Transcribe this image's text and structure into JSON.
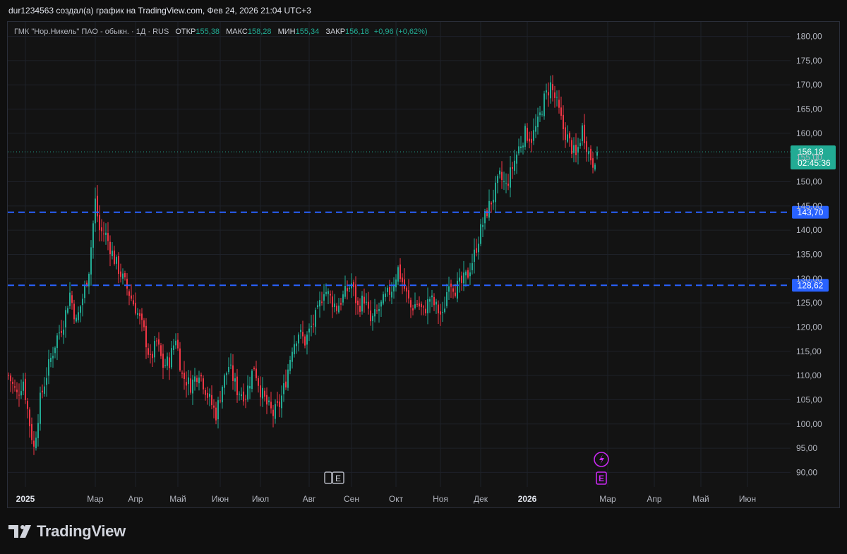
{
  "header": {
    "attribution": "dur1234563 создал(а) график на TradingView.com, Фев 24, 2026 21:04 UTC+3"
  },
  "legend": {
    "symbol": "ГМК \"Нор.Никель\" ПАО - обыкн. · 1Д · RUS",
    "open_label": "ОТКР",
    "open_value": "155,38",
    "high_label": "МАКС",
    "high_value": "158,28",
    "low_label": "МИН",
    "low_value": "155,34",
    "close_label": "ЗАКР",
    "close_value": "156,18",
    "change": "+0,96 (+0,62%)"
  },
  "footer": {
    "brand": "TradingView"
  },
  "events": {
    "earnings_letter": "E",
    "dividend_letter": "E"
  },
  "colors": {
    "up": "#22ab94",
    "down": "#f23645",
    "level": "#2962ff",
    "price_label": "#22ab94",
    "background": "#131313",
    "event": "#c829f0"
  },
  "chart_data": {
    "type": "candlestick",
    "y_axis": {
      "range": [
        87,
        183
      ],
      "ticks": [
        "90,00",
        "95,00",
        "100,00",
        "105,00",
        "110,00",
        "115,00",
        "120,00",
        "125,00",
        "130,00",
        "135,00",
        "140,00",
        "145,00",
        "150,00",
        "155,00",
        "160,00",
        "165,00",
        "170,00",
        "175,00",
        "180,00"
      ]
    },
    "x_axis": {
      "labels": [
        {
          "label": "2025",
          "bold": true,
          "bar": 8
        },
        {
          "label": "Мар",
          "bold": false,
          "bar": 41
        },
        {
          "label": "Апр",
          "bold": false,
          "bar": 60
        },
        {
          "label": "Май",
          "bold": false,
          "bar": 80
        },
        {
          "label": "Июн",
          "bold": false,
          "bar": 100
        },
        {
          "label": "Июл",
          "bold": false,
          "bar": 119
        },
        {
          "label": "Авг",
          "bold": false,
          "bar": 142
        },
        {
          "label": "Сен",
          "bold": false,
          "bar": 162
        },
        {
          "label": "Окт",
          "bold": false,
          "bar": 183
        },
        {
          "label": "Ноя",
          "bold": false,
          "bar": 204
        },
        {
          "label": "Дек",
          "bold": false,
          "bar": 223
        },
        {
          "label": "2026",
          "bold": true,
          "bar": 245
        },
        {
          "label": "Мар",
          "bold": false,
          "bar": 283
        },
        {
          "label": "Апр",
          "bold": false,
          "bar": 305
        },
        {
          "label": "Май",
          "bold": false,
          "bar": 327
        },
        {
          "label": "Июн",
          "bold": false,
          "bar": 349
        }
      ]
    },
    "levels": [
      {
        "value": 143.7,
        "label": "143,70"
      },
      {
        "value": 128.62,
        "label": "128,62"
      }
    ],
    "last_price": {
      "value": 156.18,
      "label": "156,18",
      "countdown": "02:45:36"
    },
    "event_markers": [
      {
        "type": "earnings",
        "bar": 154
      },
      {
        "type": "dividend",
        "bar": 278
      }
    ],
    "waypoints": [
      [
        0,
        110
      ],
      [
        4,
        106
      ],
      [
        7,
        109
      ],
      [
        10,
        100
      ],
      [
        12,
        95
      ],
      [
        15,
        105
      ],
      [
        19,
        112
      ],
      [
        23,
        118
      ],
      [
        26,
        121
      ],
      [
        29,
        127
      ],
      [
        32,
        121
      ],
      [
        35,
        126
      ],
      [
        38,
        132
      ],
      [
        41,
        146
      ],
      [
        43,
        140
      ],
      [
        46,
        139
      ],
      [
        50,
        134
      ],
      [
        53,
        131
      ],
      [
        56,
        128
      ],
      [
        60,
        124
      ],
      [
        64,
        119
      ],
      [
        67,
        113
      ],
      [
        70,
        117
      ],
      [
        73,
        112
      ],
      [
        76,
        113
      ],
      [
        79,
        118
      ],
      [
        82,
        110
      ],
      [
        86,
        108
      ],
      [
        90,
        111
      ],
      [
        94,
        106
      ],
      [
        98,
        102
      ],
      [
        101,
        108
      ],
      [
        104,
        112
      ],
      [
        108,
        107
      ],
      [
        112,
        106
      ],
      [
        116,
        112
      ],
      [
        119,
        107
      ],
      [
        122,
        104
      ],
      [
        125,
        102
      ],
      [
        128,
        104
      ],
      [
        131,
        109
      ],
      [
        134,
        116
      ],
      [
        137,
        119
      ],
      [
        140,
        117
      ],
      [
        143,
        120
      ],
      [
        146,
        123
      ],
      [
        149,
        128
      ],
      [
        152,
        126
      ],
      [
        155,
        124
      ],
      [
        159,
        127
      ],
      [
        162,
        129
      ],
      [
        165,
        124
      ],
      [
        168,
        126
      ],
      [
        171,
        121
      ],
      [
        174,
        123
      ],
      [
        178,
        126
      ],
      [
        181,
        128
      ],
      [
        184,
        132
      ],
      [
        187,
        128
      ],
      [
        190,
        124
      ],
      [
        193,
        125
      ],
      [
        196,
        123
      ],
      [
        199,
        126
      ],
      [
        202,
        124
      ],
      [
        205,
        122
      ],
      [
        208,
        130
      ],
      [
        211,
        128
      ],
      [
        214,
        129
      ],
      [
        217,
        131
      ],
      [
        220,
        135
      ],
      [
        223,
        140
      ],
      [
        226,
        144
      ],
      [
        229,
        147
      ],
      [
        232,
        151
      ],
      [
        235,
        149
      ],
      [
        238,
        153
      ],
      [
        241,
        157
      ],
      [
        244,
        160
      ],
      [
        247,
        159
      ],
      [
        250,
        162
      ],
      [
        253,
        167
      ],
      [
        256,
        170
      ],
      [
        259,
        166
      ],
      [
        262,
        161
      ],
      [
        265,
        158
      ],
      [
        268,
        155
      ],
      [
        271,
        161
      ],
      [
        274,
        156
      ],
      [
        276,
        154
      ],
      [
        278,
        156.2
      ]
    ]
  }
}
